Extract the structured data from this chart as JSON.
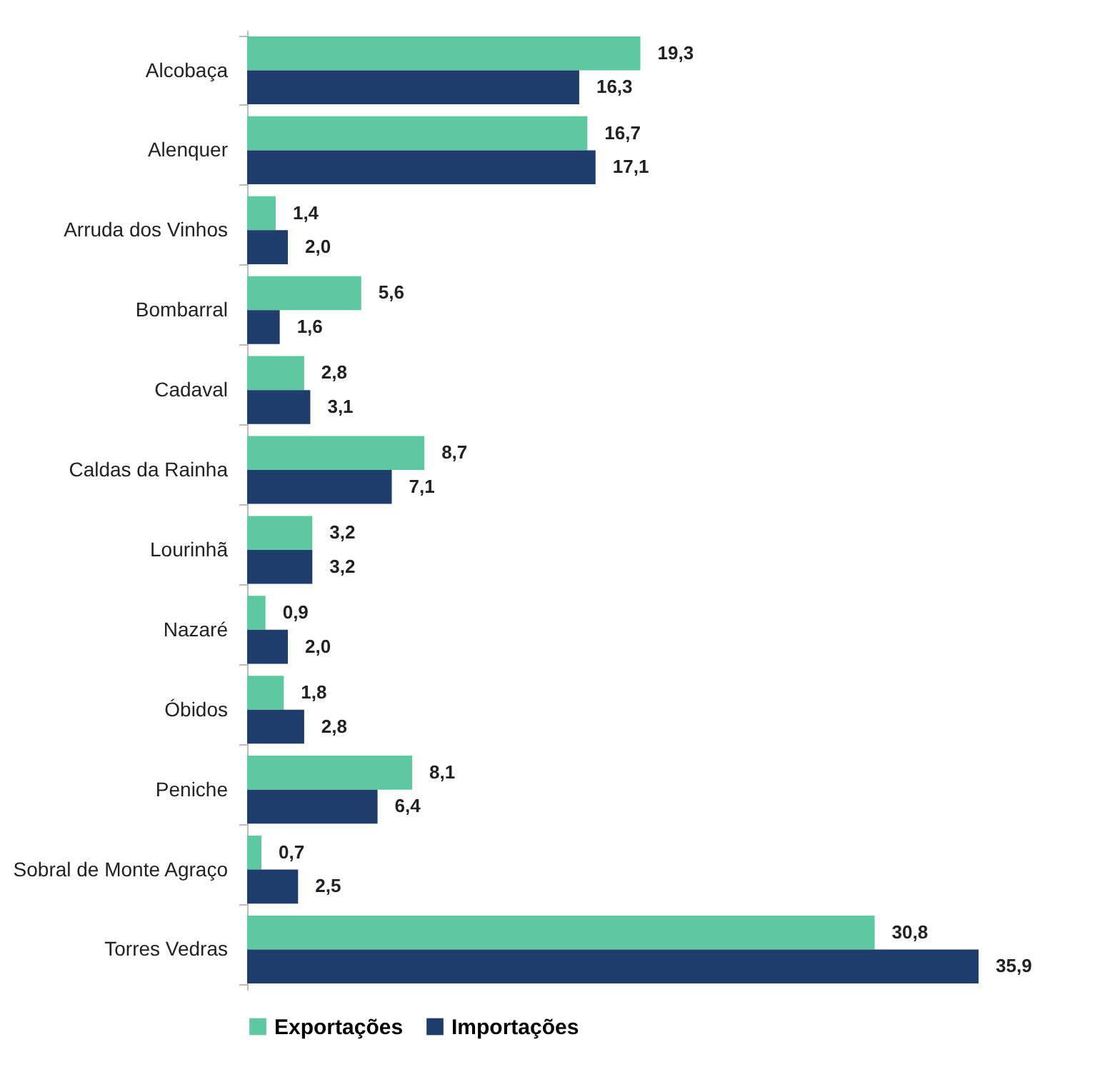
{
  "chart_data": {
    "type": "bar",
    "orientation": "horizontal",
    "legend": "bottom",
    "categories": [
      "Alcobaça",
      "Alenquer",
      "Arruda dos Vinhos",
      "Bombarral",
      "Cadaval",
      "Caldas da Rainha",
      "Lourinhã",
      "Nazaré",
      "Óbidos",
      "Peniche",
      "Sobral de Monte Agraço",
      "Torres Vedras"
    ],
    "series": [
      {
        "name": "Exportações",
        "color": "#5ec8a0",
        "values": [
          19.3,
          16.7,
          1.4,
          5.6,
          2.8,
          8.7,
          3.2,
          0.9,
          1.8,
          8.1,
          0.7,
          30.8
        ],
        "value_labels": [
          "19,3",
          "16,7",
          "1,4",
          "5,6",
          "2,8",
          "8,7",
          "3,2",
          "0,9",
          "1,8",
          "8,1",
          "0,7",
          "30,8"
        ]
      },
      {
        "name": "Importações",
        "color": "#1f3d6b",
        "values": [
          16.3,
          17.1,
          2.0,
          1.6,
          3.1,
          7.1,
          3.2,
          2.0,
          2.8,
          6.4,
          2.5,
          35.9
        ],
        "value_labels": [
          "16,3",
          "17,1",
          "2,0",
          "1,6",
          "3,1",
          "7,1",
          "3,2",
          "2,0",
          "2,8",
          "6,4",
          "2,5",
          "35,9"
        ]
      }
    ]
  }
}
